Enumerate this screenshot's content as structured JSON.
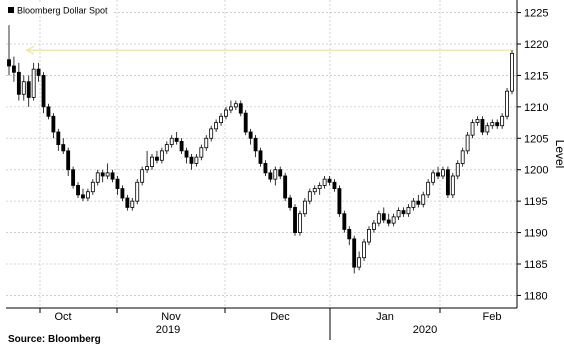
{
  "source_text": "Source: Bloomberg",
  "chart_data": {
    "type": "candlestick",
    "legend": "Bloomberg Dollar Spot",
    "ylabel": "Level",
    "ylim": [
      1178,
      1227
    ],
    "yticks": [
      1180,
      1185,
      1190,
      1195,
      1200,
      1205,
      1210,
      1215,
      1220,
      1225
    ],
    "grid": true,
    "legend_position": "top-left",
    "reference_line": {
      "value": 1219,
      "color": "#e8e6a0"
    },
    "month_labels": [
      "Oct",
      "Nov",
      "Dec",
      "Jan",
      "Feb"
    ],
    "year_labels": [
      "2019",
      "2020"
    ],
    "colors": {
      "up": "#ffffff",
      "down": "#000000",
      "grid": "#c8c8c8"
    },
    "candles": [
      [
        1217.5,
        1216.5,
        1223,
        1215
      ],
      [
        1216.5,
        1215.5,
        1218,
        1214
      ],
      [
        1215.5,
        1212,
        1217,
        1211
      ],
      [
        1212,
        1214,
        1215,
        1211
      ],
      [
        1214,
        1211.5,
        1215,
        1210
      ],
      [
        1211.5,
        1216,
        1217,
        1211
      ],
      [
        1216,
        1215,
        1217,
        1214
      ],
      [
        1215,
        1210,
        1215.5,
        1209
      ],
      [
        1210,
        1208.5,
        1210.5,
        1208
      ],
      [
        1208.5,
        1206,
        1209,
        1205
      ],
      [
        1206,
        1204,
        1206.5,
        1203
      ],
      [
        1204,
        1203,
        1205,
        1202.5
      ],
      [
        1203,
        1200,
        1203.5,
        1199
      ],
      [
        1200,
        1197.5,
        1200.5,
        1197
      ],
      [
        1197.5,
        1196,
        1198,
        1195.5
      ],
      [
        1196,
        1195.5,
        1197,
        1195
      ],
      [
        1195.5,
        1196.5,
        1197,
        1195
      ],
      [
        1196.5,
        1198,
        1198.5,
        1196
      ],
      [
        1198,
        1199.5,
        1200,
        1197.5
      ],
      [
        1199.5,
        1199,
        1200,
        1198
      ],
      [
        1199,
        1199.5,
        1201,
        1198.5
      ],
      [
        1199.5,
        1198.5,
        1200,
        1198
      ],
      [
        1198.5,
        1197,
        1199,
        1196
      ],
      [
        1197,
        1195.5,
        1197.5,
        1195
      ],
      [
        1195.5,
        1194,
        1196,
        1193.5
      ],
      [
        1194,
        1195,
        1195.5,
        1193.5
      ],
      [
        1195,
        1198,
        1198.5,
        1194.5
      ],
      [
        1198,
        1200,
        1200.5,
        1197.5
      ],
      [
        1200,
        1200.5,
        1203,
        1199.5
      ],
      [
        1200.5,
        1202,
        1202.5,
        1200
      ],
      [
        1202,
        1201.5,
        1203,
        1201
      ],
      [
        1201.5,
        1203,
        1203.5,
        1201
      ],
      [
        1203,
        1204,
        1204.5,
        1202.5
      ],
      [
        1204,
        1205,
        1205.5,
        1203.5
      ],
      [
        1205,
        1204.5,
        1206,
        1204
      ],
      [
        1204.5,
        1203,
        1205,
        1202.5
      ],
      [
        1203,
        1202,
        1203.5,
        1201
      ],
      [
        1202,
        1201,
        1202.5,
        1200
      ],
      [
        1201,
        1202,
        1202.5,
        1200.5
      ],
      [
        1202,
        1203.5,
        1204,
        1201.5
      ],
      [
        1203.5,
        1205,
        1205.5,
        1203
      ],
      [
        1205,
        1206.5,
        1207,
        1204.5
      ],
      [
        1206.5,
        1207.5,
        1208,
        1206
      ],
      [
        1207.5,
        1208.5,
        1209,
        1207
      ],
      [
        1208.5,
        1209.5,
        1210,
        1208
      ],
      [
        1209.5,
        1210,
        1211,
        1209
      ],
      [
        1210,
        1210.5,
        1211,
        1209.5
      ],
      [
        1210.5,
        1209,
        1211,
        1208.5
      ],
      [
        1209,
        1206,
        1209.5,
        1205.5
      ],
      [
        1206,
        1205,
        1206.5,
        1204
      ],
      [
        1205,
        1203,
        1205.5,
        1202
      ],
      [
        1203,
        1201,
        1203.5,
        1200.5
      ],
      [
        1201,
        1199.5,
        1201.5,
        1199
      ],
      [
        1199.5,
        1198.5,
        1200,
        1198
      ],
      [
        1198.5,
        1200,
        1200.5,
        1197.5
      ],
      [
        1200,
        1199,
        1200.5,
        1198.5
      ],
      [
        1199,
        1195.5,
        1199.5,
        1195
      ],
      [
        1195.5,
        1194,
        1196,
        1193.5
      ],
      [
        1194,
        1190,
        1194.5,
        1189.5
      ],
      [
        1190,
        1193,
        1193.5,
        1189.5
      ],
      [
        1193,
        1195,
        1195.5,
        1192.5
      ],
      [
        1195,
        1196.5,
        1197,
        1194.5
      ],
      [
        1196.5,
        1197,
        1197.5,
        1196
      ],
      [
        1197,
        1197.5,
        1198,
        1196
      ],
      [
        1197.5,
        1198.5,
        1199,
        1197
      ],
      [
        1198.5,
        1198,
        1199,
        1197.5
      ],
      [
        1198,
        1197,
        1198.5,
        1196.5
      ],
      [
        1197,
        1193,
        1197.5,
        1192.5
      ],
      [
        1193,
        1190.5,
        1193.5,
        1190
      ],
      [
        1190.5,
        1189,
        1191,
        1188
      ],
      [
        1189,
        1184.5,
        1189.5,
        1183.5
      ],
      [
        1184.5,
        1186,
        1187,
        1184
      ],
      [
        1186,
        1188.5,
        1189,
        1185.5
      ],
      [
        1188.5,
        1190.5,
        1191,
        1188
      ],
      [
        1190.5,
        1191.5,
        1192,
        1190
      ],
      [
        1191.5,
        1193,
        1193.5,
        1191
      ],
      [
        1193,
        1192,
        1194,
        1191.5
      ],
      [
        1192,
        1191.5,
        1193,
        1191
      ],
      [
        1191.5,
        1192.5,
        1193,
        1191
      ],
      [
        1192.5,
        1193.5,
        1194,
        1192
      ],
      [
        1193.5,
        1193,
        1194,
        1192.5
      ],
      [
        1193,
        1194,
        1194.5,
        1192.5
      ],
      [
        1194,
        1195,
        1195.5,
        1193.5
      ],
      [
        1195,
        1194.5,
        1196,
        1194
      ],
      [
        1194.5,
        1196,
        1196.5,
        1194
      ],
      [
        1196,
        1198,
        1198.5,
        1195.5
      ],
      [
        1198,
        1199.5,
        1200,
        1197.5
      ],
      [
        1199.5,
        1199,
        1200.5,
        1198.5
      ],
      [
        1199,
        1200,
        1200.5,
        1198.5
      ],
      [
        1200,
        1196,
        1200.5,
        1195.5
      ],
      [
        1196,
        1199,
        1199.5,
        1195.5
      ],
      [
        1199,
        1201,
        1201.5,
        1198.5
      ],
      [
        1201,
        1203,
        1203.5,
        1200.5
      ],
      [
        1203,
        1205.5,
        1206,
        1202.5
      ],
      [
        1205.5,
        1207.5,
        1208,
        1205
      ],
      [
        1207.5,
        1208,
        1208.5,
        1207
      ],
      [
        1208,
        1206,
        1208.5,
        1205.5
      ],
      [
        1206,
        1207,
        1207.5,
        1205.5
      ],
      [
        1207,
        1207.5,
        1208,
        1206.5
      ],
      [
        1207.5,
        1207,
        1208,
        1206.5
      ],
      [
        1207,
        1208.5,
        1209,
        1206.5
      ],
      [
        1208.5,
        1212.5,
        1213,
        1208
      ],
      [
        1212.5,
        1218.5,
        1219,
        1212
      ]
    ]
  }
}
